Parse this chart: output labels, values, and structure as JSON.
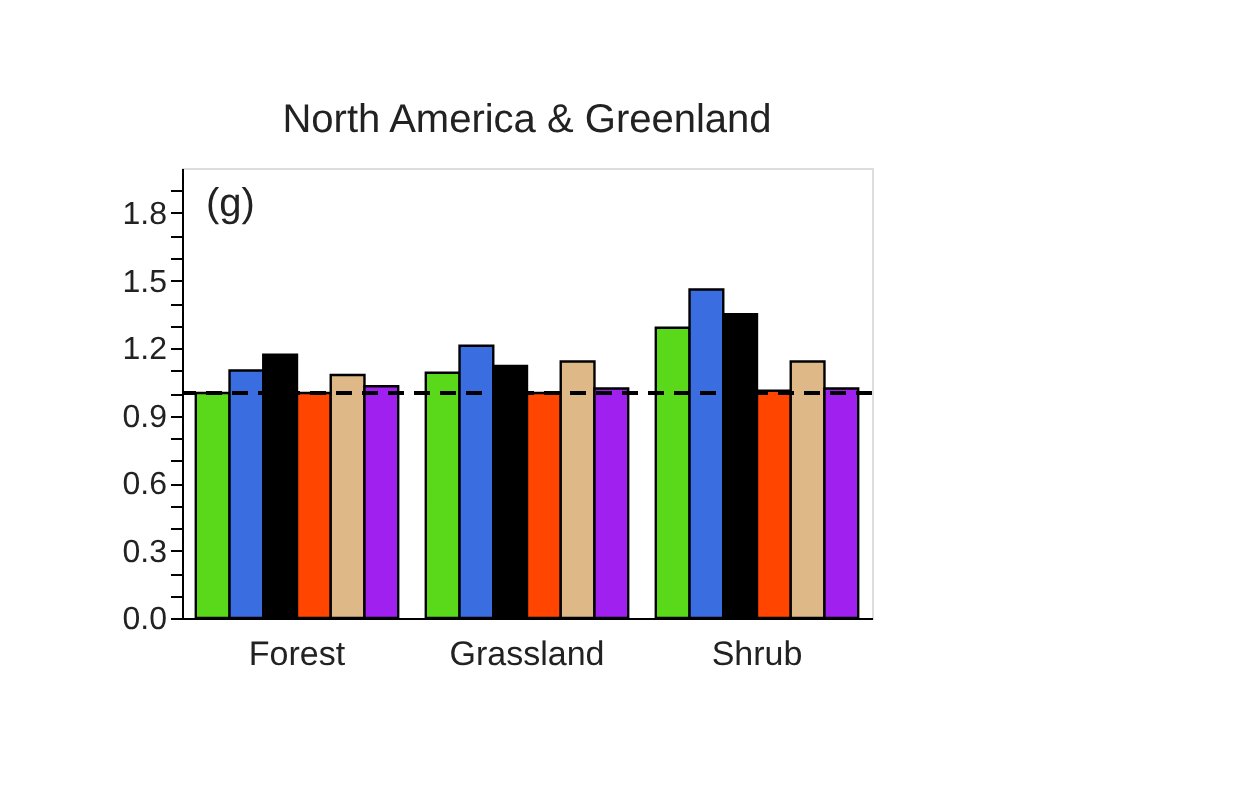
{
  "chart_data": {
    "type": "bar",
    "title": "North America & Greenland",
    "categories": [
      "Forest",
      "Grassland",
      "Shrub"
    ],
    "series": [
      {
        "color": "#5ad81a",
        "values": [
          1.0,
          1.09,
          1.29
        ]
      },
      {
        "color": "#3a6ee0",
        "values": [
          1.1,
          1.21,
          1.46
        ]
      },
      {
        "color": "#000000",
        "values": [
          1.17,
          1.12,
          1.35
        ]
      },
      {
        "color": "#ff4500",
        "values": [
          1.0,
          1.0,
          1.01
        ]
      },
      {
        "color": "#deb887",
        "values": [
          1.08,
          1.14,
          1.14
        ]
      },
      {
        "color": "#a020f0",
        "values": [
          1.03,
          1.02,
          1.02
        ]
      }
    ],
    "ylim": [
      0,
      2.0
    ],
    "yticks": [
      {
        "value": 0,
        "label": "0.0"
      },
      {
        "value": 0.1,
        "label": null
      },
      {
        "value": 0.2,
        "label": null
      },
      0.3,
      {
        "value": 0.4,
        "label": null
      },
      {
        "value": 0.5,
        "label": null
      },
      0.6,
      {
        "value": 0.7,
        "label": null
      },
      {
        "value": 0.8,
        "label": null
      },
      0.9,
      {
        "value": 1.0,
        "label": null
      },
      {
        "value": 1.1,
        "label": null
      },
      1.2,
      {
        "value": 1.3,
        "label": null
      },
      {
        "value": 1.4,
        "label": null
      },
      1.5,
      {
        "value": 1.6,
        "label": null
      },
      {
        "value": 1.7,
        "label": null
      },
      1.8,
      {
        "value": 1.9,
        "label": null
      }
    ],
    "ref_lines": [
      {
        "axis": "y",
        "value": 1.0,
        "line_style": "dashed",
        "color": "#000000"
      }
    ],
    "annotations": [
      "(g)"
    ],
    "grid": false,
    "legend": false
  }
}
